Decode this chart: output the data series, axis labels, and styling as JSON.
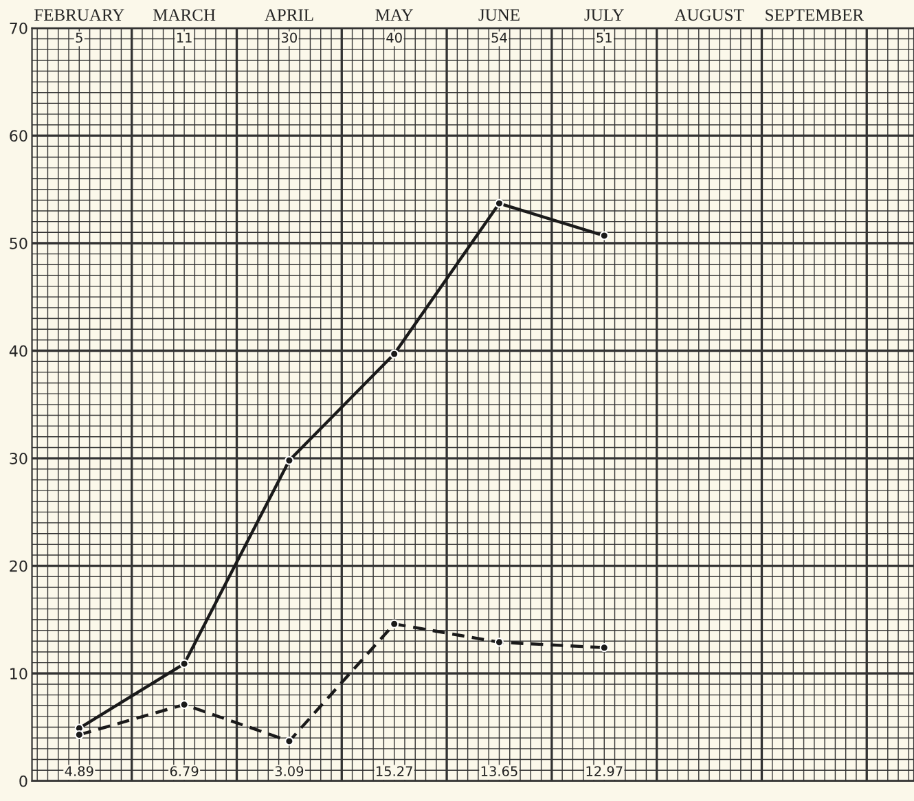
{
  "chart_data": {
    "type": "line",
    "categories": [
      "FEBRUARY",
      "MARCH",
      "APRIL",
      "MAY",
      "JUNE",
      "JULY",
      "AUGUST",
      "SEPTEMBER"
    ],
    "series": [
      {
        "color": "#1a1a1a",
        "line_style": "solid",
        "values": [
          4.9,
          10.9,
          29.8,
          39.7,
          53.7,
          50.7,
          null,
          null
        ]
      },
      {
        "color": "#1a1a1a",
        "line_style": "dashed",
        "values": [
          4.3,
          7.1,
          3.7,
          14.6,
          12.9,
          12.4,
          null,
          null
        ]
      }
    ],
    "annotations": [
      {
        "text": "5",
        "x": "FEBRUARY",
        "y": 69
      },
      {
        "text": "11",
        "x": "MARCH",
        "y": 69
      },
      {
        "text": "30",
        "x": "APRIL",
        "y": 69
      },
      {
        "text": "40",
        "x": "MAY",
        "y": 69
      },
      {
        "text": "54",
        "x": "JUNE",
        "y": 69
      },
      {
        "text": "51",
        "x": "JULY",
        "y": 69
      },
      {
        "text": "4.89",
        "x": "FEBRUARY",
        "y": 0.8
      },
      {
        "text": "6.79",
        "x": "MARCH",
        "y": 0.8
      },
      {
        "text": "3.09",
        "x": "APRIL",
        "y": 0.8
      },
      {
        "text": "15.27",
        "x": "MAY",
        "y": 0.8
      },
      {
        "text": "13.65",
        "x": "JUNE",
        "y": 0.8
      },
      {
        "text": "12.97",
        "x": "JULY",
        "y": 0.8
      }
    ],
    "ylim": [
      0,
      70
    ],
    "yticks": [
      0,
      10,
      20,
      30,
      40,
      50,
      60,
      70
    ],
    "grid": true,
    "marker": "circle"
  }
}
